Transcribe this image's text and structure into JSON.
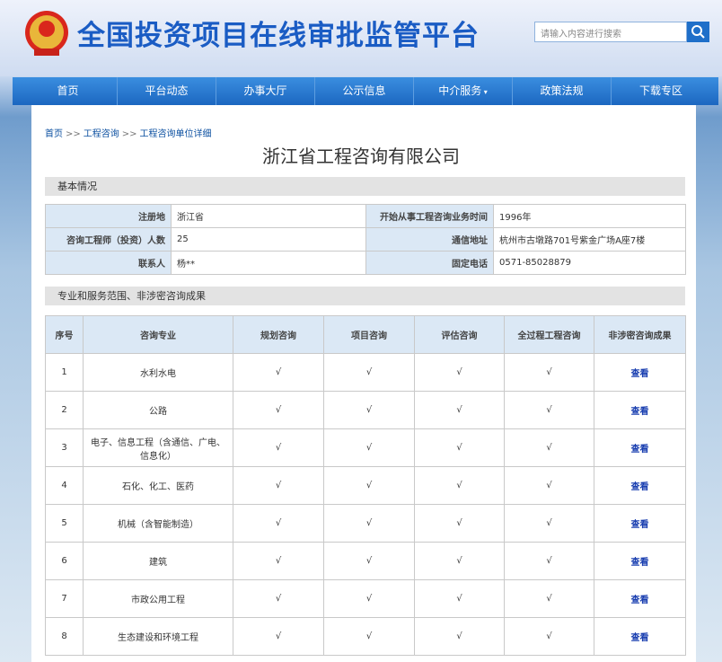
{
  "header": {
    "title": "全国投资项目在线审批监管平台",
    "search_placeholder": "请输入内容进行搜索"
  },
  "nav": [
    "首页",
    "平台动态",
    "办事大厅",
    "公示信息",
    "中介服务",
    "政策法规",
    "下载专区"
  ],
  "breadcrumb": {
    "items": [
      "首页",
      "工程咨询",
      "工程咨询单位详细"
    ],
    "separator": ">>"
  },
  "page_title": "浙江省工程咨询有限公司",
  "basic": {
    "title": "基本情况",
    "rows": [
      [
        "注册地",
        "浙江省",
        "开始从事工程咨询业务时间",
        "1996年"
      ],
      [
        "咨询工程师（投资）人数",
        "25",
        "通信地址",
        "杭州市古墩路701号紫金广场A座7楼"
      ],
      [
        "联系人",
        "杨**",
        "固定电话",
        "0571-85028879"
      ]
    ]
  },
  "scope": {
    "title": "专业和服务范围、非涉密咨询成果",
    "headers": [
      "序号",
      "咨询专业",
      "规划咨询",
      "项目咨询",
      "评估咨询",
      "全过程工程咨询",
      "非涉密咨询成果"
    ],
    "rows": [
      [
        "1",
        "水利水电",
        "√",
        "√",
        "√",
        "√",
        "查看"
      ],
      [
        "2",
        "公路",
        "√",
        "√",
        "√",
        "√",
        "查看"
      ],
      [
        "3",
        "电子、信息工程（含通信、广电、信息化）",
        "√",
        "√",
        "√",
        "√",
        "查看"
      ],
      [
        "4",
        "石化、化工、医药",
        "√",
        "√",
        "√",
        "√",
        "查看"
      ],
      [
        "5",
        "机械（含智能制造）",
        "√",
        "√",
        "√",
        "√",
        "查看"
      ],
      [
        "6",
        "建筑",
        "√",
        "√",
        "√",
        "√",
        "查看"
      ],
      [
        "7",
        "市政公用工程",
        "√",
        "√",
        "√",
        "√",
        "查看"
      ],
      [
        "8",
        "生态建设和环境工程",
        "√",
        "√",
        "√",
        "√",
        "查看"
      ]
    ]
  }
}
